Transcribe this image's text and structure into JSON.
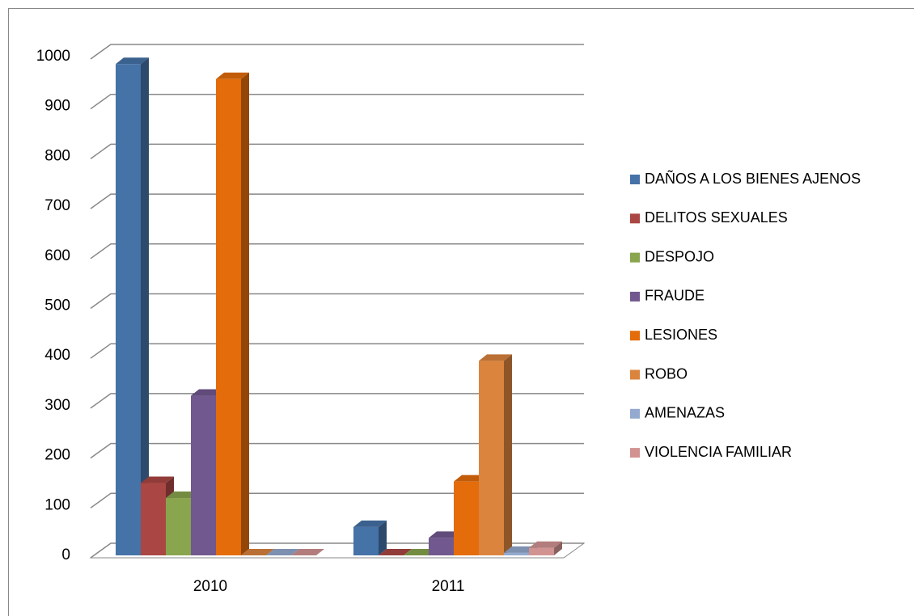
{
  "chart_data": {
    "type": "bar3d",
    "categories": [
      "2010",
      "2011"
    ],
    "series": [
      {
        "name": "DAÑOS A LOS BIENES AJENOS",
        "color": "#4572a7",
        "values": [
          985,
          57
        ]
      },
      {
        "name": "DELITOS SEXUALES",
        "color": "#aa4643",
        "values": [
          145,
          0
        ]
      },
      {
        "name": "DESPOJO",
        "color": "#89a54e",
        "values": [
          115,
          0
        ]
      },
      {
        "name": "FRAUDE",
        "color": "#71588f",
        "values": [
          320,
          35
        ]
      },
      {
        "name": "LESIONES",
        "color": "#e46c0a",
        "values": [
          955,
          148
        ]
      },
      {
        "name": "ROBO",
        "color": "#db843d",
        "values": [
          0,
          390
        ]
      },
      {
        "name": "AMENAZAS",
        "color": "#93a9cf",
        "values": [
          0,
          5
        ]
      },
      {
        "name": "VIOLENCIA FAMILIAR",
        "color": "#d19392",
        "values": [
          0,
          15
        ]
      }
    ],
    "ylim": [
      0,
      1000
    ],
    "yticks": [
      0,
      100,
      200,
      300,
      400,
      500,
      600,
      700,
      800,
      900,
      1000
    ],
    "grid": true,
    "legend": "right"
  }
}
